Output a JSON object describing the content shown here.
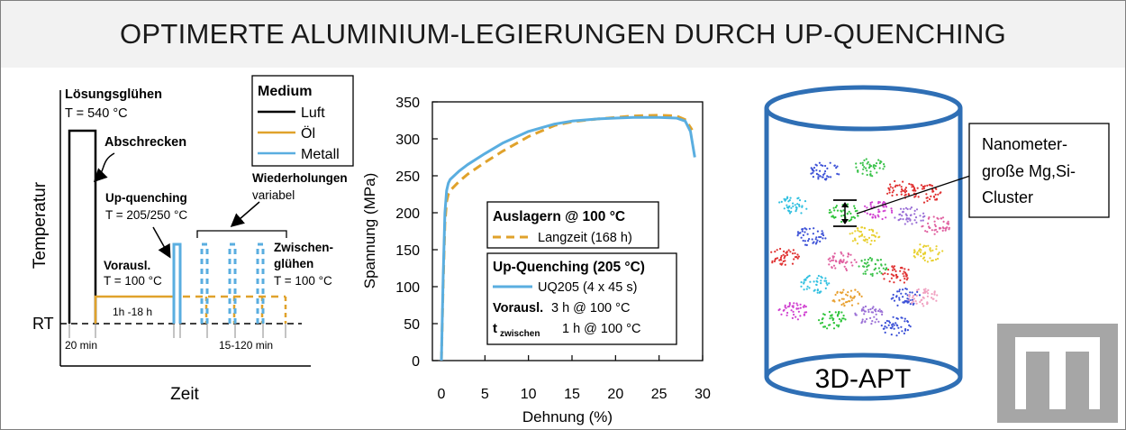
{
  "title": "OPTIMERTE ALUMINIUM-LEGIERUNGEN DURCH UP-QUENCHING",
  "colors": {
    "luft": "#000000",
    "oel": "#e0a22b",
    "metall": "#5aaee0",
    "header_bg": "#f2f2f2",
    "cylinder": "#2f6fb5"
  },
  "schematic": {
    "ylabel": "Temperatur",
    "xlabel": "Zeit",
    "rt_label": "RT",
    "loesung_title": "Lösungsglühen",
    "loesung_temp": "T = 540 °C",
    "abschrecken": "Abschrecken",
    "upq_title": "Up-quenching",
    "upq_temp": "T = 205/250 °C",
    "voraus_title": "Vorausl.",
    "voraus_temp": "T = 100 °C",
    "voraus_time": "1h -18 h",
    "wiederholungen_title": "Wiederholungen",
    "wiederholungen_sub": "variabel",
    "zwischen_title_1": "Zwischen-",
    "zwischen_title_2": "glühen",
    "zwischen_temp": "T = 100 °C",
    "time_20min": "20 min",
    "time_15_120": "15-120 min",
    "legend_title": "Medium",
    "legend": [
      {
        "label": "Luft",
        "color": "#000000"
      },
      {
        "label": "Öl",
        "color": "#e0a22b"
      },
      {
        "label": "Metall",
        "color": "#5aaee0"
      }
    ]
  },
  "chart_data": {
    "type": "line",
    "xlabel": "Dehnung (%)",
    "ylabel": "Spannung (MPa)",
    "xlim": [
      0,
      30
    ],
    "ylim": [
      0,
      350
    ],
    "xticks": [
      "0",
      "5",
      "10",
      "15",
      "20",
      "25",
      "30"
    ],
    "yticks": [
      "0",
      "50",
      "100",
      "150",
      "200",
      "250",
      "300",
      "350"
    ],
    "legend_group_1_title": "Auslagern @ 100 °C",
    "legend_group_2_title": "Up-Quenching (205 °C)",
    "voraus_bold": "Vorausl.",
    "voraus_value": "3 h @ 100 °C",
    "tzw_t": "t",
    "tzw_sub": "zwischen",
    "tzw_value": "1 h @ 100 °C",
    "series": [
      {
        "name": "Langzeit (168 h)",
        "color": "#e0a22b",
        "style": "dashed",
        "x": [
          0,
          0.2,
          0.4,
          0.6,
          0.8,
          1,
          2,
          3,
          5,
          7,
          10,
          13,
          15,
          18,
          20,
          22,
          25,
          27,
          28,
          28.8
        ],
        "y": [
          0,
          100,
          185,
          215,
          225,
          230,
          242,
          252,
          268,
          283,
          303,
          318,
          323,
          327,
          329,
          331,
          332,
          331,
          326,
          312
        ]
      },
      {
        "name": "UQ205 (4 x 45 s)",
        "color": "#5aaee0",
        "style": "solid",
        "x": [
          0,
          0.2,
          0.4,
          0.6,
          0.8,
          1,
          2,
          3,
          5,
          7,
          10,
          13,
          15,
          18,
          20,
          22,
          25,
          27,
          28,
          28.6,
          29.1
        ],
        "y": [
          0,
          110,
          200,
          230,
          240,
          245,
          256,
          265,
          280,
          294,
          310,
          320,
          324,
          327,
          328,
          329,
          329,
          328,
          324,
          310,
          275
        ]
      }
    ]
  },
  "apt": {
    "label": "3D-APT",
    "callout_1": "Nanometer-",
    "callout_2": "große Mg,Si-",
    "callout_3": "Cluster"
  }
}
